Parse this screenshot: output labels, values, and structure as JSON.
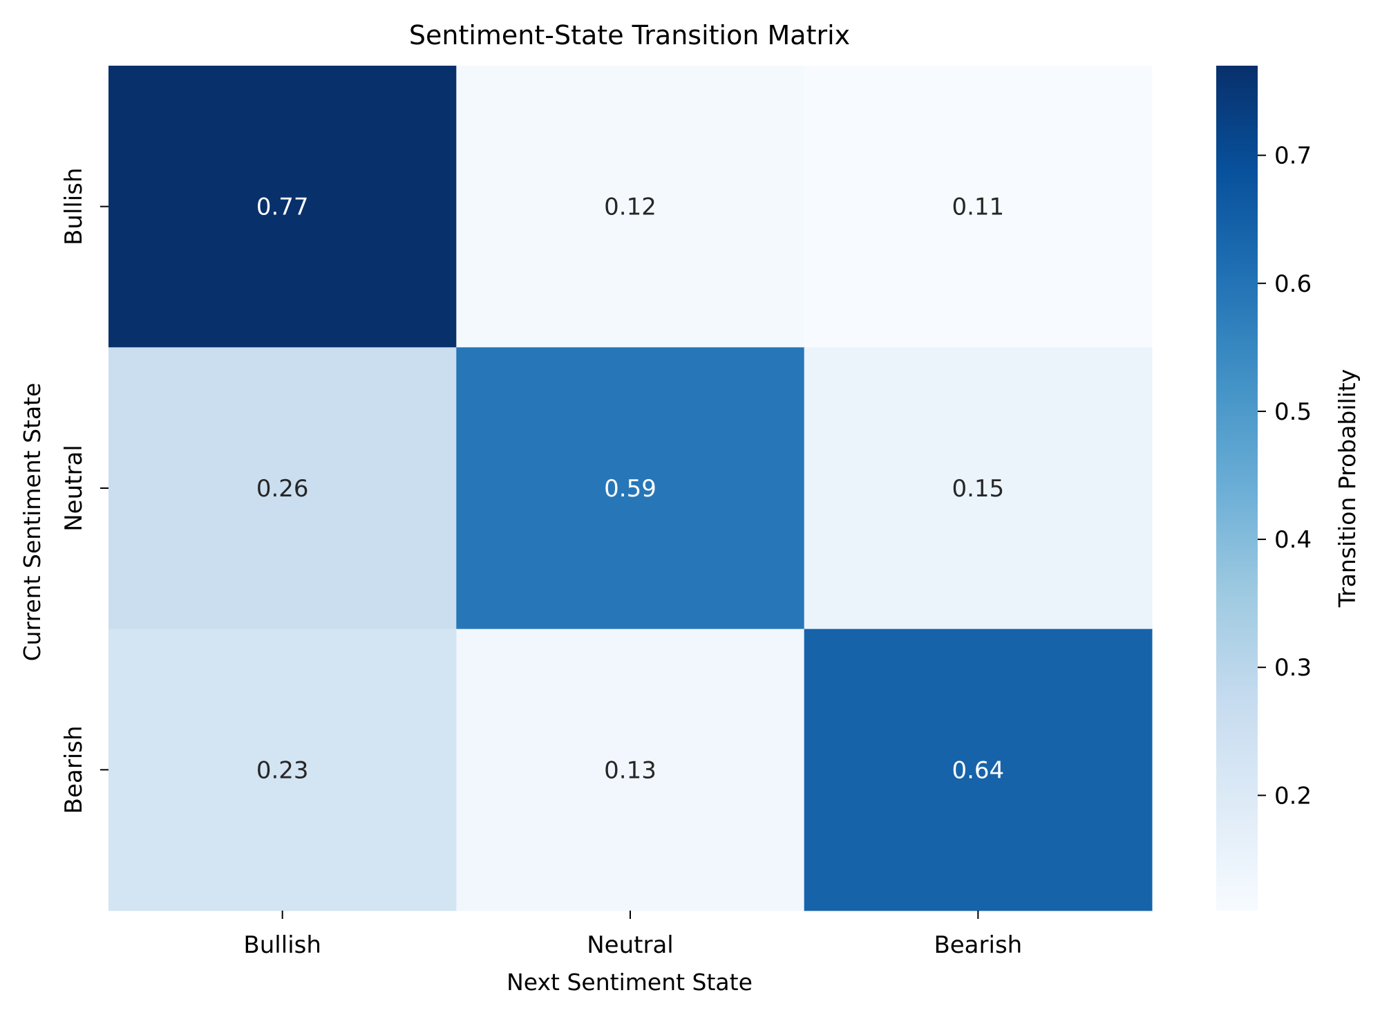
{
  "chart_data": {
    "type": "heatmap",
    "title": "Sentiment-State Transition Matrix",
    "xlabel": "Next Sentiment State",
    "ylabel": "Current Sentiment State",
    "x_categories": [
      "Bullish",
      "Neutral",
      "Bearish"
    ],
    "y_categories": [
      "Bullish",
      "Neutral",
      "Bearish"
    ],
    "values": [
      [
        0.77,
        0.12,
        0.11
      ],
      [
        0.26,
        0.59,
        0.15
      ],
      [
        0.23,
        0.13,
        0.64
      ]
    ],
    "cell_labels": [
      [
        "0.77",
        "0.12",
        "0.11"
      ],
      [
        "0.26",
        "0.59",
        "0.15"
      ],
      [
        "0.23",
        "0.13",
        "0.64"
      ]
    ],
    "colorbar": {
      "label": "Transition Probability",
      "range": [
        0.11,
        0.77
      ],
      "ticks": [
        0.2,
        0.3,
        0.4,
        0.5,
        0.6,
        0.7
      ],
      "tick_labels": [
        "0.2",
        "0.3",
        "0.4",
        "0.5",
        "0.6",
        "0.7"
      ]
    },
    "colormap": "Blues",
    "colormap_stops": [
      "#f7fbff",
      "#deebf7",
      "#c6dbef",
      "#9ecae1",
      "#6baed6",
      "#4292c6",
      "#2171b5",
      "#08519c",
      "#08306b"
    ]
  }
}
